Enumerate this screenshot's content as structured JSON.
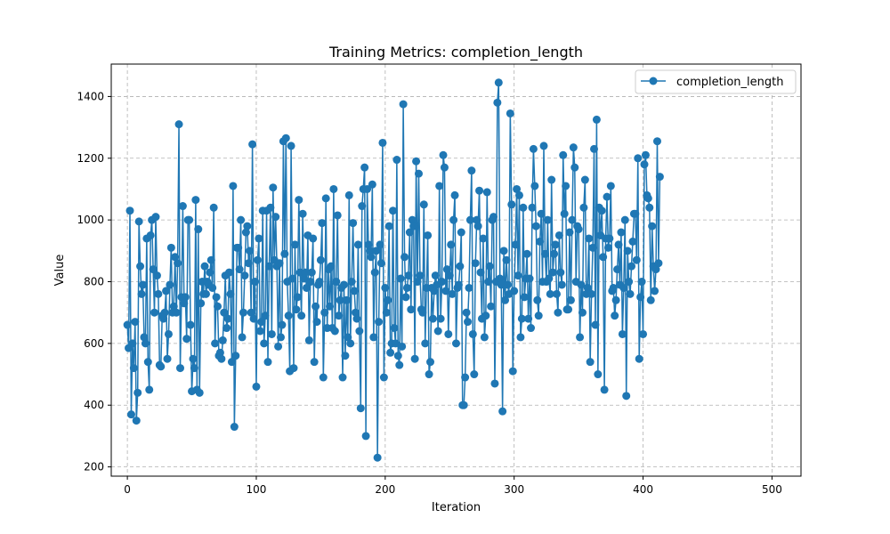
{
  "chart_data": {
    "type": "line",
    "title": "Training Metrics: completion_length",
    "xlabel": "Iteration",
    "ylabel": "Value",
    "xlim": [
      -12.5,
      522.5
    ],
    "ylim": [
      170,
      1505
    ],
    "grid": true,
    "legend_position": "top-right",
    "x_ticks": [
      0,
      100,
      200,
      300,
      400,
      500
    ],
    "x_tick_labels": [
      "0",
      "100",
      "200",
      "300",
      "400",
      "500"
    ],
    "y_ticks": [
      200,
      400,
      600,
      800,
      1000,
      1200,
      1400
    ],
    "y_tick_labels": [
      "200",
      "400",
      "600",
      "800",
      "1000",
      "1200",
      "1400"
    ],
    "colors": {
      "series": "#1f77b4",
      "grid": "#b0b0b0"
    },
    "series": [
      {
        "name": "completion_length",
        "x_start": 0,
        "x_step": 1,
        "values": [
          660,
          585,
          1030,
          370,
          600,
          520,
          670,
          350,
          440,
          995,
          850,
          760,
          790,
          620,
          600,
          940,
          540,
          450,
          950,
          1000,
          840,
          700,
          1010,
          820,
          760,
          530,
          525,
          690,
          680,
          700,
          770,
          550,
          630,
          790,
          910,
          700,
          720,
          880,
          700,
          860,
          1310,
          520,
          750,
          1045,
          730,
          750,
          615,
          1000,
          1000,
          660,
          445,
          550,
          520,
          1065,
          450,
          970,
          440,
          730,
          800,
          760,
          850,
          760,
          800,
          790,
          830,
          870,
          780,
          1040,
          600,
          750,
          720,
          560,
          570,
          550,
          610,
          700,
          820,
          650,
          680,
          830,
          760,
          540,
          1110,
          330,
          560,
          910,
          910,
          840,
          1000,
          620,
          700,
          820,
          960,
          980,
          860,
          900,
          700,
          1245,
          680,
          800,
          460,
          870,
          940,
          640,
          670,
          1030,
          600,
          690,
          1030,
          540,
          850,
          1040,
          630,
          1105,
          870,
          1010,
          850,
          590,
          860,
          620,
          660,
          1255,
          890,
          1265,
          800,
          690,
          510,
          1240,
          810,
          520,
          920,
          710,
          750,
          1065,
          830,
          690,
          1020,
          810,
          830,
          780,
          950,
          610,
          800,
          830,
          940,
          540,
          720,
          670,
          790,
          800,
          870,
          990,
          490,
          700,
          1070,
          650,
          840,
          720,
          850,
          650,
          1100,
          640,
          800,
          1015,
          690,
          740,
          780,
          490,
          790,
          560,
          740,
          620,
          1080,
          600,
          800,
          990,
          770,
          700,
          680,
          920,
          640,
          390,
          1045,
          1100,
          1170,
          300,
          1100,
          920,
          900,
          880,
          1115,
          620,
          830,
          900,
          230,
          670,
          920,
          860,
          1250,
          490,
          780,
          700,
          740,
          980,
          570,
          600,
          1030,
          650,
          600,
          1195,
          560,
          530,
          810,
          590,
          1375,
          880,
          750,
          780,
          820,
          960,
          710,
          1000,
          980,
          550,
          1190,
          800,
          1150,
          820,
          710,
          700,
          1050,
          600,
          780,
          950,
          500,
          540,
          780,
          680,
          770,
          820,
          790,
          640,
          1110,
          680,
          800,
          1210,
          1170,
          770,
          840,
          630,
          820,
          920,
          760,
          1000,
          1080,
          600,
          780,
          790,
          850,
          960,
          400,
          400,
          490,
          700,
          670,
          780,
          1000,
          1160,
          630,
          500,
          860,
          1000,
          980,
          1095,
          830,
          680,
          940,
          620,
          690,
          1090,
          800,
          850,
          720,
          1000,
          1010,
          470,
          800,
          1380,
          1445,
          810,
          790,
          380,
          900,
          740,
          870,
          790,
          760,
          1345,
          1050,
          510,
          770,
          920,
          1100,
          820,
          1080,
          620,
          680,
          1040,
          750,
          810,
          890,
          680,
          810,
          650,
          1040,
          1230,
          1110,
          980,
          740,
          690,
          930,
          1020,
          800,
          1240,
          890,
          800,
          1000,
          810,
          760,
          1130,
          830,
          890,
          920,
          760,
          700,
          950,
          830,
          790,
          1210,
          1020,
          1110,
          710,
          710,
          960,
          740,
          1000,
          1235,
          1170,
          800,
          980,
          970,
          620,
          790,
          700,
          1040,
          1130,
          760,
          780,
          940,
          540,
          760,
          910,
          1230,
          660,
          1325,
          500,
          1040,
          950,
          1030,
          880,
          450,
          940,
          1075,
          910,
          940,
          1110,
          770,
          780,
          690,
          740,
          840,
          920,
          790,
          960,
          630,
          780,
          1000,
          430,
          900,
          800,
          760,
          850,
          930,
          1020,
          1020,
          870,
          1200,
          550,
          750,
          800,
          630,
          1180,
          1210,
          1080,
          1070,
          1040,
          740,
          980,
          850,
          770,
          840,
          1255,
          860,
          1140
        ]
      }
    ]
  }
}
